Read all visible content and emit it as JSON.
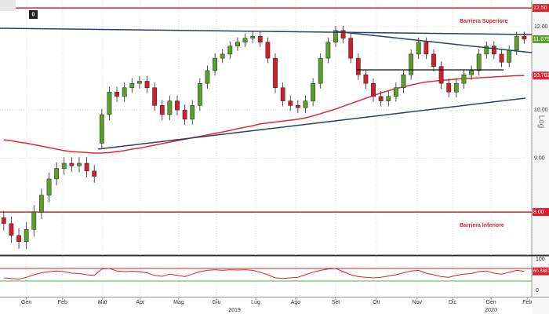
{
  "chart_data": {
    "type": "candlestick",
    "log_scale": true,
    "grid": true,
    "up_color": "#5a9f2a",
    "down_color": "#cf1f2c",
    "ylim": [
      7.28,
      12.72
    ],
    "yticks": [
      {
        "value": 9,
        "label": "9.00"
      },
      {
        "value": 10,
        "label": "10.00"
      },
      {
        "value": 12,
        "label": "12.00"
      }
    ],
    "levels": [
      {
        "value": 12.5,
        "label": "12.50",
        "color": "#d9202a",
        "text": "Barriera Superiore"
      },
      {
        "value": 8,
        "label": "8.00",
        "color": "#d9202a",
        "text": "Barriera Inferiore"
      }
    ],
    "xlim": [
      -0.5,
      70
    ],
    "xticks": [
      {
        "value": 3,
        "label": "Gen"
      },
      {
        "value": 7.8,
        "label": "Feb"
      },
      {
        "value": 13.1,
        "label": "Mar"
      },
      {
        "value": 18.1,
        "label": "Apr"
      },
      {
        "value": 23.2,
        "label": "Mag"
      },
      {
        "value": 28.2,
        "label": "Giu"
      },
      {
        "value": 33.4,
        "label": "Lug"
      },
      {
        "value": 38.7,
        "label": "Ago"
      },
      {
        "value": 44,
        "label": "Set"
      },
      {
        "value": 49.4,
        "label": "Ott"
      },
      {
        "value": 54.8,
        "label": "Nov"
      },
      {
        "value": 59.5,
        "label": "Dic"
      },
      {
        "value": 64.6,
        "label": "Gen"
      },
      {
        "value": 69.4,
        "label": "Feb"
      }
    ],
    "year_labels": [
      {
        "value": 30.6,
        "label": "2019"
      },
      {
        "value": 64.6,
        "label": "2020"
      }
    ],
    "legend_badge": "0",
    "scale_label": "Log",
    "open": [
      7.9,
      7.8,
      7.6,
      7.5,
      7.7,
      8.0,
      8.3,
      8.6,
      8.8,
      8.9,
      8.85,
      8.9,
      8.75,
      9.3,
      9.9,
      10.4,
      10.3,
      10.5,
      10.6,
      10.65,
      10.5,
      10.1,
      9.9,
      10.2,
      10.0,
      9.8,
      10.1,
      10.6,
      10.9,
      11.2,
      11.3,
      11.5,
      11.6,
      11.7,
      11.75,
      11.6,
      11.2,
      10.5,
      10.2,
      10.1,
      10.05,
      10.2,
      10.6,
      11.2,
      11.6,
      11.9,
      11.7,
      11.2,
      10.8,
      10.6,
      10.3,
      10.2,
      10.3,
      10.5,
      10.8,
      11.3,
      11.6,
      11.3,
      11.0,
      10.6,
      10.4,
      10.6,
      10.8,
      10.9,
      11.3,
      11.5,
      11.3,
      11.1,
      11.4,
      11.75
    ],
    "high": [
      8.02,
      7.92,
      7.72,
      7.82,
      8.12,
      8.42,
      8.72,
      8.92,
      9.02,
      9.02,
      9.02,
      9.02,
      8.87,
      10.02,
      10.52,
      10.52,
      10.62,
      10.72,
      10.77,
      10.77,
      10.62,
      10.22,
      10.32,
      10.32,
      10.12,
      10.22,
      10.72,
      11.02,
      11.32,
      11.42,
      11.62,
      11.72,
      11.82,
      11.87,
      11.87,
      11.72,
      11.32,
      10.62,
      10.32,
      10.22,
      10.32,
      10.72,
      11.32,
      11.72,
      12.02,
      12.02,
      11.82,
      11.32,
      10.92,
      10.72,
      10.42,
      10.42,
      10.62,
      10.92,
      11.42,
      11.72,
      11.72,
      11.42,
      11.12,
      10.72,
      10.72,
      10.92,
      11.02,
      11.42,
      11.62,
      11.62,
      11.42,
      11.52,
      11.87,
      11.87
    ],
    "low": [
      7.68,
      7.48,
      7.38,
      7.38,
      7.58,
      7.88,
      8.18,
      8.48,
      8.68,
      8.73,
      8.73,
      8.63,
      8.53,
      9.18,
      9.78,
      10.18,
      10.18,
      10.38,
      10.48,
      10.38,
      9.98,
      9.78,
      9.78,
      9.88,
      9.68,
      9.68,
      9.98,
      10.48,
      10.78,
      11.08,
      11.18,
      11.38,
      11.48,
      11.58,
      11.48,
      11.08,
      10.38,
      10.08,
      9.98,
      9.93,
      9.93,
      10.08,
      10.48,
      11.08,
      11.48,
      11.58,
      11.08,
      10.68,
      10.48,
      10.18,
      10.08,
      10.08,
      10.18,
      10.38,
      10.68,
      11.18,
      11.18,
      10.88,
      10.48,
      10.28,
      10.28,
      10.48,
      10.68,
      10.78,
      11.18,
      11.18,
      10.98,
      10.98,
      11.28,
      11.56
    ],
    "close": [
      7.8,
      7.6,
      7.5,
      7.7,
      8.0,
      8.3,
      8.6,
      8.8,
      8.9,
      8.85,
      8.9,
      8.75,
      8.65,
      9.9,
      10.4,
      10.3,
      10.5,
      10.6,
      10.65,
      10.5,
      10.1,
      9.9,
      10.2,
      10.0,
      9.8,
      10.1,
      10.6,
      10.9,
      11.2,
      11.3,
      11.5,
      11.6,
      11.7,
      11.75,
      11.6,
      11.2,
      10.5,
      10.2,
      10.1,
      10.05,
      10.2,
      10.6,
      11.2,
      11.6,
      11.9,
      11.7,
      11.2,
      10.8,
      10.6,
      10.3,
      10.2,
      10.3,
      10.5,
      10.8,
      11.3,
      11.6,
      11.3,
      11.0,
      10.6,
      10.4,
      10.6,
      10.8,
      10.9,
      11.3,
      11.5,
      11.3,
      11.1,
      11.4,
      11.75,
      11.675
    ],
    "close_label": {
      "value": 11.675,
      "label": "11.675",
      "color": "#5a9f2a"
    },
    "moving_average": {
      "color": "#e0283a",
      "values": [
        9.37,
        9.35,
        9.32,
        9.3,
        9.27,
        9.24,
        9.21,
        9.18,
        9.15,
        9.13,
        9.12,
        9.11,
        9.1,
        9.1,
        9.11,
        9.13,
        9.15,
        9.18,
        9.2,
        9.23,
        9.26,
        9.29,
        9.32,
        9.35,
        9.38,
        9.41,
        9.44,
        9.47,
        9.5,
        9.53,
        9.56,
        9.6,
        9.63,
        9.66,
        9.7,
        9.72,
        9.74,
        9.76,
        9.78,
        9.8,
        9.83,
        9.87,
        9.92,
        9.97,
        10.02,
        10.08,
        10.14,
        10.2,
        10.26,
        10.32,
        10.38,
        10.43,
        10.48,
        10.52,
        10.56,
        10.6,
        10.63,
        10.65,
        10.67,
        10.68,
        10.7,
        10.71,
        10.72,
        10.73,
        10.74,
        10.75,
        10.76,
        10.77,
        10.78,
        10.782
      ],
      "last_label": {
        "value": 10.782,
        "label": "10.782"
      }
    },
    "rsi": {
      "color": "#d9202a",
      "ylim": [
        -20,
        110
      ],
      "yticks": [
        0,
        100
      ],
      "upper": 70,
      "lower": 30,
      "upper_color": "#d9202a",
      "lower_color": "#4caf50",
      "values": [
        40,
        38,
        36,
        42,
        50,
        56,
        60,
        62,
        60,
        55,
        54,
        50,
        48,
        68,
        70,
        62,
        60,
        61,
        60,
        56,
        48,
        45,
        52,
        48,
        44,
        52,
        60,
        64,
        66,
        64,
        66,
        65,
        66,
        64,
        58,
        50,
        40,
        38,
        40,
        42,
        50,
        58,
        64,
        68,
        70,
        60,
        50,
        44,
        42,
        40,
        42,
        46,
        50,
        56,
        62,
        64,
        55,
        50,
        44,
        42,
        48,
        52,
        54,
        60,
        62,
        55,
        52,
        58,
        64,
        60.8887
      ],
      "last_label": {
        "value": 60.8887,
        "label": "60.8887"
      }
    }
  }
}
